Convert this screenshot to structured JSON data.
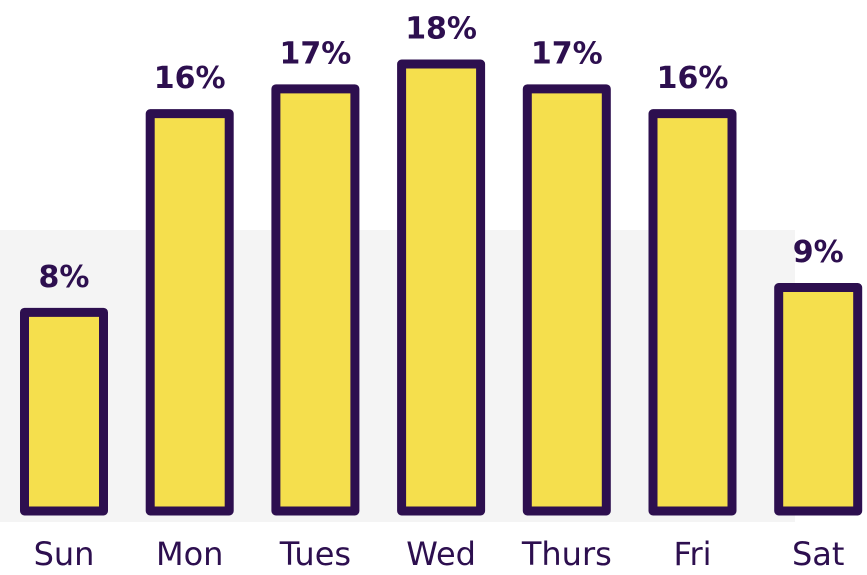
{
  "chart_data": {
    "type": "bar",
    "categories": [
      "Sun",
      "Mon",
      "Tues",
      "Wed",
      "Thurs",
      "Fri",
      "Sat"
    ],
    "values": [
      8,
      16,
      17,
      18,
      17,
      16,
      9
    ],
    "value_labels": [
      "8%",
      "16%",
      "17%",
      "18%",
      "17%",
      "16%",
      "9%"
    ],
    "color": "#f5df4d"
  }
}
